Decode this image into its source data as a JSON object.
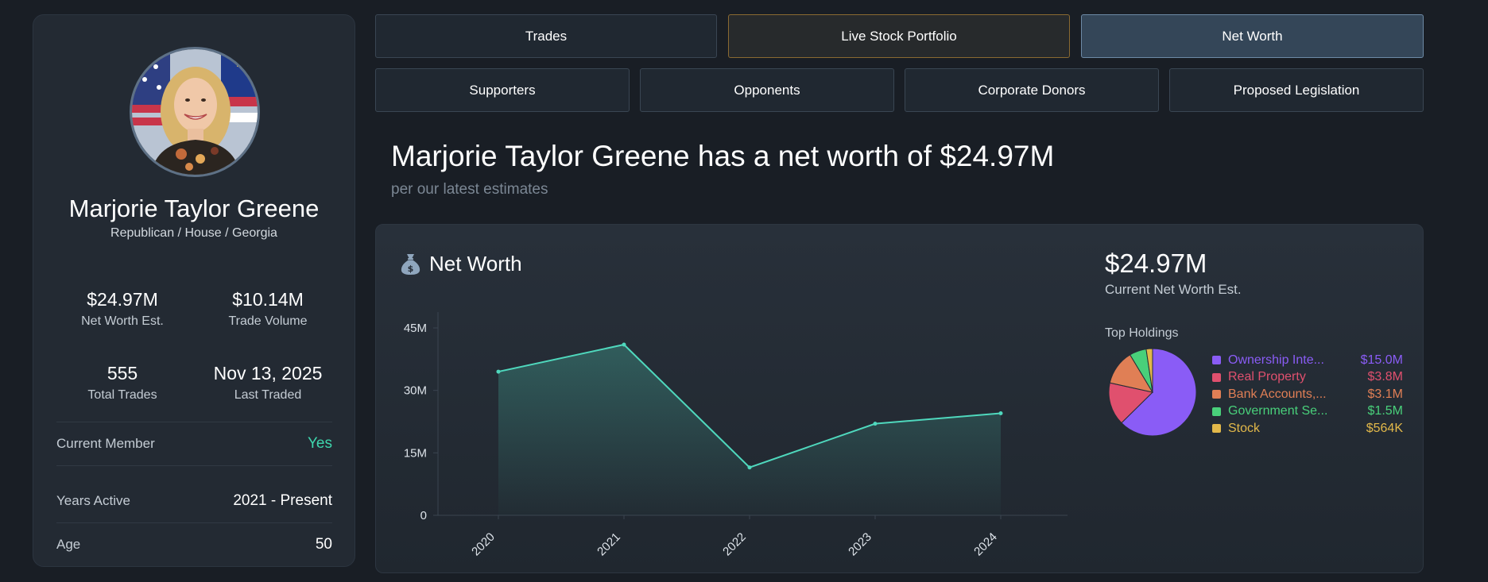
{
  "profile": {
    "name": "Marjorie Taylor Greene",
    "subtitle": "Republican / House / Georgia",
    "stats": {
      "net_worth": {
        "value": "$24.97M",
        "label": "Net Worth Est."
      },
      "trade_volume": {
        "value": "$10.14M",
        "label": "Trade Volume"
      },
      "total_trades": {
        "value": "555",
        "label": "Total Trades"
      },
      "last_traded": {
        "value": "Nov 13, 2025",
        "label": "Last Traded"
      }
    },
    "details": [
      {
        "label": "Current Member",
        "value": "Yes"
      },
      {
        "label": "Years Active",
        "value": "2021 - Present"
      },
      {
        "label": "Age",
        "value": "50"
      }
    ]
  },
  "nav": {
    "row1": [
      "Trades",
      "Live Stock Portfolio",
      "Net Worth"
    ],
    "row2": [
      "Supporters",
      "Opponents",
      "Corporate Donors",
      "Proposed Legislation"
    ],
    "active": "Net Worth"
  },
  "headline": {
    "title": "Marjorie Taylor Greene has a net worth of $24.97M",
    "subtitle": "per our latest estimates"
  },
  "panel": {
    "title": "Net Worth",
    "title_icon": "money-bag-icon",
    "current_value": "$24.97M",
    "current_label": "Current Net Worth Est.",
    "holdings_label": "Top Holdings"
  },
  "colors": {
    "line": "#4fd8bd",
    "active_nav": "#344658",
    "live_border": "#8a6a32",
    "green": "#3ed6ad"
  },
  "chart_data": [
    {
      "type": "area",
      "x": [
        "2020",
        "2021",
        "2022",
        "2023",
        "2024"
      ],
      "series": [
        {
          "values": [
            34.5,
            41,
            11.5,
            22,
            24.5
          ]
        }
      ],
      "y_ticks": [
        "0",
        "15M",
        "30M",
        "45M"
      ],
      "ylim": [
        0,
        45
      ],
      "title": "Net Worth",
      "grid": false
    },
    {
      "type": "pie",
      "title": "Top Holdings",
      "slices": [
        {
          "label": "Ownership Inte...",
          "display": "$15.0M",
          "value": 15.0,
          "color": "#8a5cf6"
        },
        {
          "label": "Real Property",
          "display": "$3.8M",
          "value": 3.8,
          "color": "#e0506e"
        },
        {
          "label": "Bank Accounts,...",
          "display": "$3.1M",
          "value": 3.1,
          "color": "#e07f55"
        },
        {
          "label": "Government Se...",
          "display": "$1.5M",
          "value": 1.5,
          "color": "#49d07a"
        },
        {
          "label": "Stock",
          "display": "$564K",
          "value": 0.564,
          "color": "#e2b84a"
        }
      ]
    }
  ]
}
